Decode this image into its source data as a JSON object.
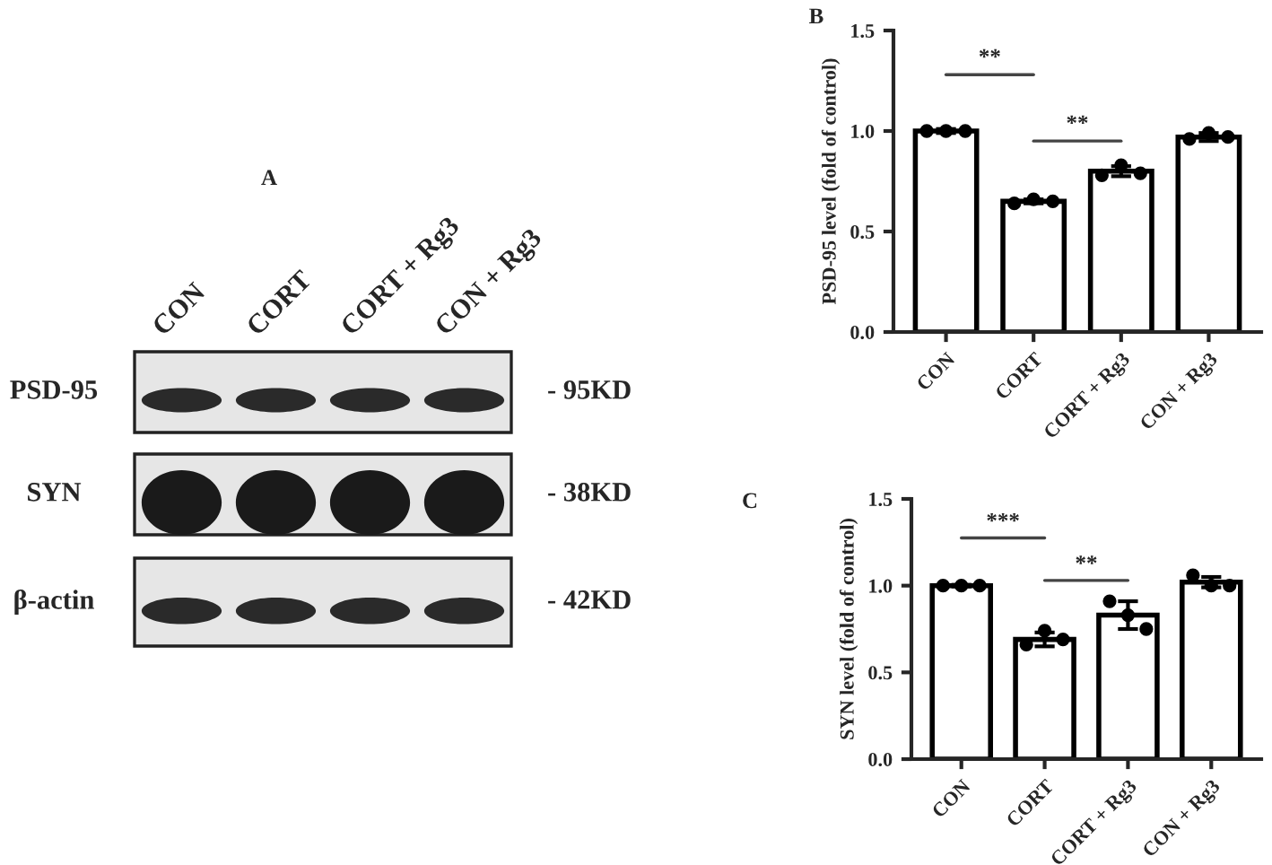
{
  "chart_data": [
    {
      "type": "other",
      "title": "A",
      "categories": [
        "CON",
        "CORT",
        "CORT + Rg3",
        "CON + Rg3"
      ],
      "y_categories": [
        "PSD-95",
        "SYN",
        "β-actin"
      ],
      "y2_categories": [
        "- 95KD",
        "- 38KD",
        "- 42KD"
      ]
    },
    {
      "type": "bar",
      "title": "B",
      "ylabel": "PSD-95 level (fold of control)",
      "categories": [
        "CON",
        "CORT",
        "CORT + Rg3",
        "CON + Rg3"
      ],
      "series": [
        {
          "type": "bar",
          "color": "#ffffff",
          "values": [
            1.0,
            0.65,
            0.8,
            0.97
          ],
          "errors": [
            0.01,
            0.01,
            0.025,
            0.02
          ]
        },
        {
          "type": "scatter",
          "color": "#000000",
          "x": [
            "CON",
            "CON",
            "CON",
            "CORT",
            "CORT",
            "CORT",
            "CORT + Rg3",
            "CORT + Rg3",
            "CORT + Rg3",
            "CON + Rg3",
            "CON + Rg3",
            "CON + Rg3"
          ],
          "values": [
            1.0,
            1.0,
            1.0,
            0.64,
            0.66,
            0.65,
            0.78,
            0.83,
            0.79,
            0.96,
            0.99,
            0.97
          ]
        }
      ],
      "ylim": [
        0,
        1.5
      ],
      "yticks": [
        {
          "value": 0,
          "label": "0.0"
        },
        {
          "value": 0.5,
          "label": "0.5"
        },
        {
          "value": 1.0,
          "label": "1.0"
        },
        {
          "value": 1.5,
          "label": "1.5"
        }
      ],
      "annotations": [
        "**",
        "**"
      ],
      "marker": "circle",
      "grid": false,
      "legend": false
    },
    {
      "type": "bar",
      "title": "C",
      "ylabel": "SYN level (fold of control)",
      "categories": [
        "CON",
        "CORT",
        "CORT + Rg3",
        "CON + Rg3"
      ],
      "series": [
        {
          "type": "bar",
          "color": "#ffffff",
          "values": [
            1.0,
            0.69,
            0.83,
            1.02
          ],
          "errors": [
            0.005,
            0.04,
            0.08,
            0.03
          ]
        },
        {
          "type": "scatter",
          "color": "#000000",
          "x": [
            "CON",
            "CON",
            "CON",
            "CORT",
            "CORT",
            "CORT",
            "CORT + Rg3",
            "CORT + Rg3",
            "CORT + Rg3",
            "CON + Rg3",
            "CON + Rg3",
            "CON + Rg3"
          ],
          "values": [
            1.0,
            1.0,
            1.0,
            0.66,
            0.74,
            0.69,
            0.91,
            0.83,
            0.75,
            1.06,
            1.0,
            1.0
          ]
        }
      ],
      "ylim": [
        0,
        1.5
      ],
      "yticks": [
        {
          "value": 0,
          "label": "0.0"
        },
        {
          "value": 0.5,
          "label": "0.5"
        },
        {
          "value": 1.0,
          "label": "1.0"
        },
        {
          "value": 1.5,
          "label": "1.5"
        }
      ],
      "annotations": [
        "***",
        "**"
      ],
      "marker": "circle",
      "grid": false,
      "legend": false
    }
  ]
}
